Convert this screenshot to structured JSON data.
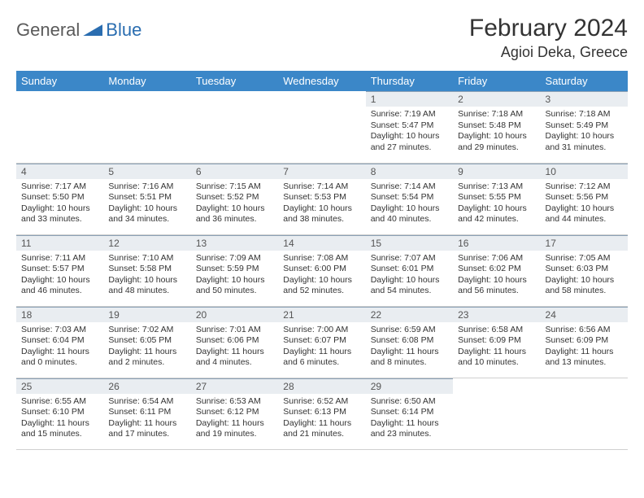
{
  "logo": {
    "word1": "General",
    "word2": "Blue"
  },
  "title": "February 2024",
  "location": "Agioi Deka, Greece",
  "columns": [
    "Sunday",
    "Monday",
    "Tuesday",
    "Wednesday",
    "Thursday",
    "Friday",
    "Saturday"
  ],
  "colors": {
    "header_bg": "#3b87c8",
    "header_text": "#ffffff",
    "daynum_bg": "#e9edf1",
    "border": "#d0d0d0",
    "accent": "#2a6db0",
    "text": "#333333"
  },
  "fonts": {
    "title_size": 30,
    "location_size": 18,
    "th_size": 13,
    "body_size": 10.5
  },
  "weeks": [
    [
      null,
      null,
      null,
      null,
      {
        "n": "1",
        "sr": "Sunrise: 7:19 AM",
        "ss": "Sunset: 5:47 PM",
        "dl": "Daylight: 10 hours and 27 minutes."
      },
      {
        "n": "2",
        "sr": "Sunrise: 7:18 AM",
        "ss": "Sunset: 5:48 PM",
        "dl": "Daylight: 10 hours and 29 minutes."
      },
      {
        "n": "3",
        "sr": "Sunrise: 7:18 AM",
        "ss": "Sunset: 5:49 PM",
        "dl": "Daylight: 10 hours and 31 minutes."
      }
    ],
    [
      {
        "n": "4",
        "sr": "Sunrise: 7:17 AM",
        "ss": "Sunset: 5:50 PM",
        "dl": "Daylight: 10 hours and 33 minutes."
      },
      {
        "n": "5",
        "sr": "Sunrise: 7:16 AM",
        "ss": "Sunset: 5:51 PM",
        "dl": "Daylight: 10 hours and 34 minutes."
      },
      {
        "n": "6",
        "sr": "Sunrise: 7:15 AM",
        "ss": "Sunset: 5:52 PM",
        "dl": "Daylight: 10 hours and 36 minutes."
      },
      {
        "n": "7",
        "sr": "Sunrise: 7:14 AM",
        "ss": "Sunset: 5:53 PM",
        "dl": "Daylight: 10 hours and 38 minutes."
      },
      {
        "n": "8",
        "sr": "Sunrise: 7:14 AM",
        "ss": "Sunset: 5:54 PM",
        "dl": "Daylight: 10 hours and 40 minutes."
      },
      {
        "n": "9",
        "sr": "Sunrise: 7:13 AM",
        "ss": "Sunset: 5:55 PM",
        "dl": "Daylight: 10 hours and 42 minutes."
      },
      {
        "n": "10",
        "sr": "Sunrise: 7:12 AM",
        "ss": "Sunset: 5:56 PM",
        "dl": "Daylight: 10 hours and 44 minutes."
      }
    ],
    [
      {
        "n": "11",
        "sr": "Sunrise: 7:11 AM",
        "ss": "Sunset: 5:57 PM",
        "dl": "Daylight: 10 hours and 46 minutes."
      },
      {
        "n": "12",
        "sr": "Sunrise: 7:10 AM",
        "ss": "Sunset: 5:58 PM",
        "dl": "Daylight: 10 hours and 48 minutes."
      },
      {
        "n": "13",
        "sr": "Sunrise: 7:09 AM",
        "ss": "Sunset: 5:59 PM",
        "dl": "Daylight: 10 hours and 50 minutes."
      },
      {
        "n": "14",
        "sr": "Sunrise: 7:08 AM",
        "ss": "Sunset: 6:00 PM",
        "dl": "Daylight: 10 hours and 52 minutes."
      },
      {
        "n": "15",
        "sr": "Sunrise: 7:07 AM",
        "ss": "Sunset: 6:01 PM",
        "dl": "Daylight: 10 hours and 54 minutes."
      },
      {
        "n": "16",
        "sr": "Sunrise: 7:06 AM",
        "ss": "Sunset: 6:02 PM",
        "dl": "Daylight: 10 hours and 56 minutes."
      },
      {
        "n": "17",
        "sr": "Sunrise: 7:05 AM",
        "ss": "Sunset: 6:03 PM",
        "dl": "Daylight: 10 hours and 58 minutes."
      }
    ],
    [
      {
        "n": "18",
        "sr": "Sunrise: 7:03 AM",
        "ss": "Sunset: 6:04 PM",
        "dl": "Daylight: 11 hours and 0 minutes."
      },
      {
        "n": "19",
        "sr": "Sunrise: 7:02 AM",
        "ss": "Sunset: 6:05 PM",
        "dl": "Daylight: 11 hours and 2 minutes."
      },
      {
        "n": "20",
        "sr": "Sunrise: 7:01 AM",
        "ss": "Sunset: 6:06 PM",
        "dl": "Daylight: 11 hours and 4 minutes."
      },
      {
        "n": "21",
        "sr": "Sunrise: 7:00 AM",
        "ss": "Sunset: 6:07 PM",
        "dl": "Daylight: 11 hours and 6 minutes."
      },
      {
        "n": "22",
        "sr": "Sunrise: 6:59 AM",
        "ss": "Sunset: 6:08 PM",
        "dl": "Daylight: 11 hours and 8 minutes."
      },
      {
        "n": "23",
        "sr": "Sunrise: 6:58 AM",
        "ss": "Sunset: 6:09 PM",
        "dl": "Daylight: 11 hours and 10 minutes."
      },
      {
        "n": "24",
        "sr": "Sunrise: 6:56 AM",
        "ss": "Sunset: 6:09 PM",
        "dl": "Daylight: 11 hours and 13 minutes."
      }
    ],
    [
      {
        "n": "25",
        "sr": "Sunrise: 6:55 AM",
        "ss": "Sunset: 6:10 PM",
        "dl": "Daylight: 11 hours and 15 minutes."
      },
      {
        "n": "26",
        "sr": "Sunrise: 6:54 AM",
        "ss": "Sunset: 6:11 PM",
        "dl": "Daylight: 11 hours and 17 minutes."
      },
      {
        "n": "27",
        "sr": "Sunrise: 6:53 AM",
        "ss": "Sunset: 6:12 PM",
        "dl": "Daylight: 11 hours and 19 minutes."
      },
      {
        "n": "28",
        "sr": "Sunrise: 6:52 AM",
        "ss": "Sunset: 6:13 PM",
        "dl": "Daylight: 11 hours and 21 minutes."
      },
      {
        "n": "29",
        "sr": "Sunrise: 6:50 AM",
        "ss": "Sunset: 6:14 PM",
        "dl": "Daylight: 11 hours and 23 minutes."
      },
      null,
      null
    ]
  ]
}
